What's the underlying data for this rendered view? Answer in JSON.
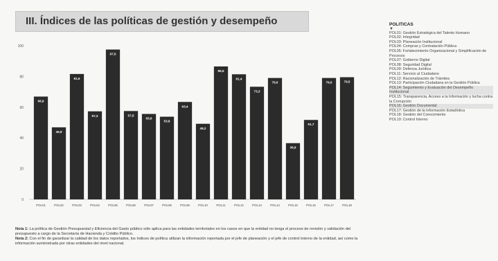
{
  "header": {
    "title": "III. Índices de las políticas de gestión y desempeño"
  },
  "chart_data": {
    "type": "bar",
    "title": "",
    "xlabel": "",
    "ylabel": "",
    "ylim": [
      0,
      100
    ],
    "yticks": [
      0,
      20,
      40,
      60,
      80,
      100
    ],
    "grid": false,
    "bar_color": "#2b2b2b",
    "categories": [
      "POL01",
      "POL02",
      "POL03",
      "POL04",
      "POL05",
      "POL06",
      "POL07",
      "POL08",
      "POL09",
      "POL10",
      "POL11",
      "POL12",
      "POL13",
      "POL14",
      "POL15",
      "POL16",
      "POL17",
      "POL18"
    ],
    "values": [
      66.9,
      46.9,
      81.6,
      57.3,
      97.5,
      57.5,
      55.6,
      53.8,
      63.4,
      49.2,
      86.5,
      81.4,
      73.3,
      79.0,
      36.6,
      51.7,
      79.0,
      79.5
    ],
    "value_labels": [
      "66,9",
      "46,9",
      "81,6",
      "57,3",
      "97,5",
      "57,5",
      "55,6",
      "53,8",
      "63,4",
      "49,2",
      "86,5",
      "81,4",
      "73,3",
      "79,0",
      "36,6",
      "51,7",
      "79,0",
      "79,5"
    ]
  },
  "notes": [
    {
      "lead": "Nota 1:",
      "text": "La política de Gestión Presupuestal y Eficiencia del Gasto público sólo aplica para las entidades territoriales en los casos en que la entidad no tenga el proceso de revisión y validación del presupuesto a cargo de la Secretaría de Hacienda y Crédito Público."
    },
    {
      "lead": "Nota 2:",
      "text": "Con el fin de garantizar la calidad de los datos reportados, los índices de política utilizan la información reportada por el jefe de planeación y el jefe de control interno de la entidad, así como la información suministrada por otras entidades del nivel nacional."
    }
  ],
  "legend": {
    "title": "POLITICAS",
    "marker": "▼",
    "items": [
      {
        "text": "POL01: Gestión Estratégica del Talento Humano",
        "highlight": false
      },
      {
        "text": "POL02: Integridad",
        "highlight": false
      },
      {
        "text": "POL03: Planeación Institucional",
        "highlight": false
      },
      {
        "text": "POL04: Compras y Contratación Pública",
        "highlight": false
      },
      {
        "text": "POL05: Fortalecimiento Organizacional y Simplificación de Procesos",
        "highlight": false
      },
      {
        "text": "POL07: Gobierno Digital",
        "highlight": false
      },
      {
        "text": "POL08: Seguridad Digital",
        "highlight": false
      },
      {
        "text": "POL09: Defensa Jurídica",
        "highlight": false
      },
      {
        "text": "POL11: Servicio al Ciudadano",
        "highlight": false
      },
      {
        "text": "POL12: Racionalización de Trámites",
        "highlight": false
      },
      {
        "text": "POL13: Participación Ciudadana en la Gestión Pública",
        "highlight": false
      },
      {
        "text": "POL14: Seguimiento y Evaluación del Desempeño Institucional",
        "highlight": true
      },
      {
        "text": "POL15: Transparencia, Acceso a la Información y lucha contra la Corrupción",
        "highlight": false
      },
      {
        "text": "POL16: Gestión Documental",
        "highlight": true
      },
      {
        "text": "POL17: Gestión de la Información Estadística",
        "highlight": false
      },
      {
        "text": "POL18: Gestión del Conocimiento",
        "highlight": false
      },
      {
        "text": "POL19: Control Interno",
        "highlight": false
      }
    ]
  }
}
